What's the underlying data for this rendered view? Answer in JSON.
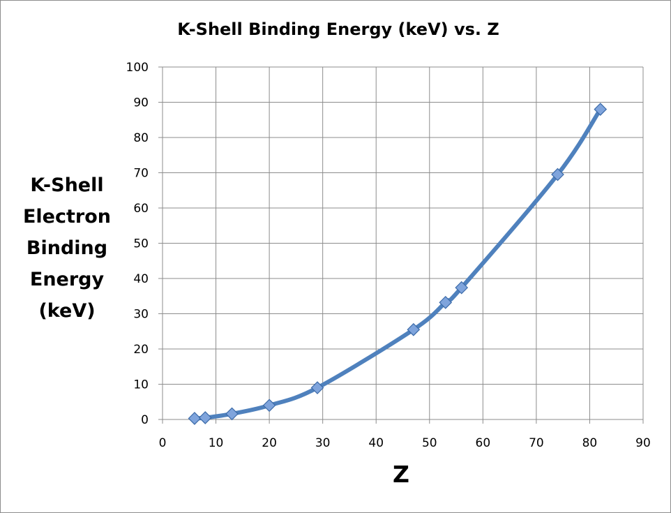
{
  "chart_data": {
    "type": "line",
    "title": "K-Shell Binding Energy (keV) vs. Z",
    "xlabel": "Z",
    "ylabel_lines": [
      "K-Shell",
      "Electron",
      "Binding",
      "Energy",
      "(keV)"
    ],
    "xlim": [
      0,
      90
    ],
    "ylim": [
      0,
      100
    ],
    "xticks": [
      0,
      10,
      20,
      30,
      40,
      50,
      60,
      70,
      80,
      90
    ],
    "yticks": [
      0,
      10,
      20,
      30,
      40,
      50,
      60,
      70,
      80,
      90,
      100
    ],
    "grid": true,
    "marker": "diamond",
    "smooth": true,
    "series": [
      {
        "x": [
          6,
          8,
          13,
          20,
          29,
          47,
          53,
          56,
          74,
          82
        ],
        "y": [
          0.3,
          0.5,
          1.6,
          4.0,
          9.0,
          25.5,
          33.2,
          37.4,
          69.5,
          88.0
        ],
        "color": "#4f81bd"
      }
    ]
  }
}
